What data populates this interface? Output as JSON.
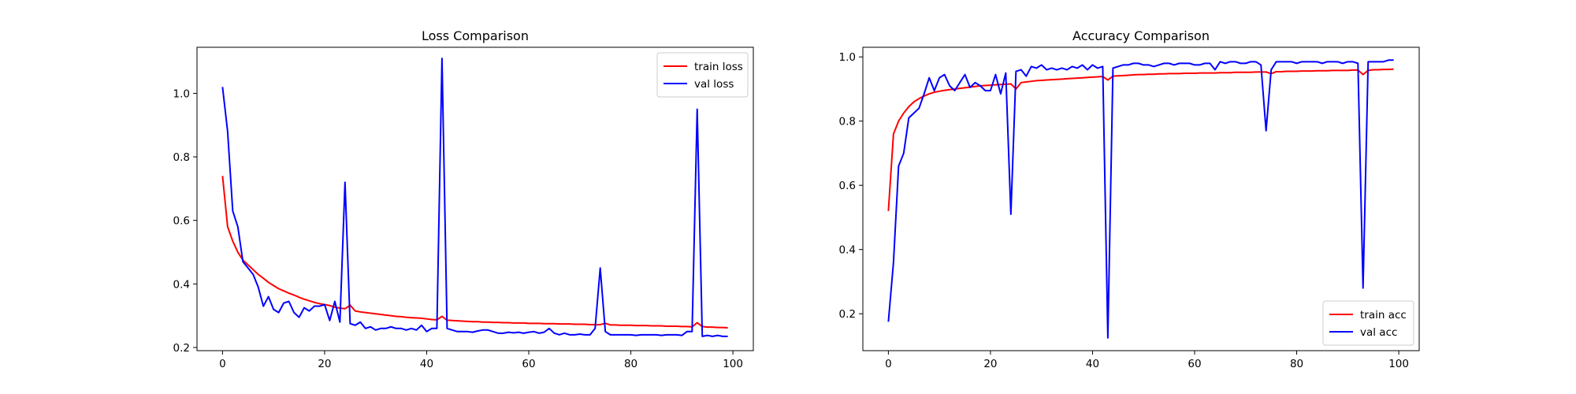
{
  "chart_data": [
    {
      "type": "line",
      "title": "Loss Comparison",
      "xlabel": "",
      "ylabel": "",
      "xlim": [
        -5,
        104
      ],
      "ylim": [
        0.19,
        1.145
      ],
      "xticks": [
        "0",
        "20",
        "40",
        "60",
        "80",
        "100"
      ],
      "yticks": [
        "0.2",
        "0.4",
        "0.6",
        "0.8",
        "1.0"
      ],
      "grid": false,
      "legend_position": "top-right",
      "x": [
        0,
        1,
        2,
        3,
        4,
        5,
        6,
        7,
        8,
        9,
        10,
        11,
        12,
        13,
        14,
        15,
        16,
        17,
        18,
        19,
        20,
        21,
        22,
        23,
        24,
        25,
        26,
        27,
        28,
        29,
        30,
        31,
        32,
        33,
        34,
        35,
        36,
        37,
        38,
        39,
        40,
        41,
        42,
        43,
        44,
        45,
        46,
        47,
        48,
        49,
        50,
        51,
        52,
        53,
        54,
        55,
        56,
        57,
        58,
        59,
        60,
        61,
        62,
        63,
        64,
        65,
        66,
        67,
        68,
        69,
        70,
        71,
        72,
        73,
        74,
        75,
        76,
        77,
        78,
        79,
        80,
        81,
        82,
        83,
        84,
        85,
        86,
        87,
        88,
        89,
        90,
        91,
        92,
        93,
        94,
        95,
        96,
        97,
        98,
        99
      ],
      "series": [
        {
          "name": "train loss",
          "color": "#ff0000",
          "values": [
            0.74,
            0.58,
            0.535,
            0.5,
            0.475,
            0.46,
            0.445,
            0.43,
            0.418,
            0.405,
            0.395,
            0.385,
            0.378,
            0.371,
            0.365,
            0.358,
            0.352,
            0.347,
            0.342,
            0.338,
            0.335,
            0.332,
            0.327,
            0.324,
            0.322,
            0.333,
            0.315,
            0.312,
            0.31,
            0.308,
            0.306,
            0.304,
            0.302,
            0.3,
            0.298,
            0.297,
            0.295,
            0.294,
            0.293,
            0.292,
            0.29,
            0.288,
            0.287,
            0.298,
            0.286,
            0.285,
            0.284,
            0.283,
            0.282,
            0.281,
            0.281,
            0.28,
            0.28,
            0.279,
            0.279,
            0.278,
            0.278,
            0.277,
            0.277,
            0.277,
            0.276,
            0.276,
            0.276,
            0.275,
            0.275,
            0.275,
            0.274,
            0.274,
            0.274,
            0.273,
            0.273,
            0.273,
            0.272,
            0.272,
            0.272,
            0.276,
            0.271,
            0.271,
            0.27,
            0.27,
            0.27,
            0.269,
            0.269,
            0.269,
            0.268,
            0.268,
            0.268,
            0.267,
            0.267,
            0.267,
            0.266,
            0.266,
            0.265,
            0.278,
            0.266,
            0.264,
            0.264,
            0.263,
            0.263,
            0.262
          ]
        },
        {
          "name": "val loss",
          "color": "#0000ff",
          "values": [
            1.02,
            0.88,
            0.63,
            0.58,
            0.47,
            0.45,
            0.43,
            0.39,
            0.33,
            0.36,
            0.32,
            0.31,
            0.34,
            0.345,
            0.31,
            0.295,
            0.325,
            0.315,
            0.33,
            0.33,
            0.335,
            0.285,
            0.345,
            0.28,
            0.72,
            0.275,
            0.27,
            0.28,
            0.26,
            0.265,
            0.255,
            0.26,
            0.26,
            0.265,
            0.26,
            0.26,
            0.255,
            0.26,
            0.255,
            0.27,
            0.25,
            0.26,
            0.26,
            1.11,
            0.26,
            0.255,
            0.25,
            0.25,
            0.25,
            0.248,
            0.252,
            0.255,
            0.255,
            0.25,
            0.245,
            0.245,
            0.248,
            0.246,
            0.248,
            0.245,
            0.248,
            0.25,
            0.245,
            0.248,
            0.26,
            0.245,
            0.24,
            0.245,
            0.24,
            0.24,
            0.242,
            0.24,
            0.24,
            0.26,
            0.45,
            0.25,
            0.24,
            0.24,
            0.24,
            0.24,
            0.24,
            0.238,
            0.24,
            0.24,
            0.24,
            0.24,
            0.238,
            0.24,
            0.24,
            0.24,
            0.238,
            0.25,
            0.25,
            0.95,
            0.235,
            0.238,
            0.235,
            0.238,
            0.235,
            0.235
          ]
        }
      ]
    },
    {
      "type": "line",
      "title": "Accuracy Comparison",
      "xlabel": "",
      "ylabel": "",
      "xlim": [
        -5,
        104
      ],
      "ylim": [
        0.085,
        1.03
      ],
      "xticks": [
        "0",
        "20",
        "40",
        "60",
        "80",
        "100"
      ],
      "yticks": [
        "0.2",
        "0.4",
        "0.6",
        "0.8",
        "1.0"
      ],
      "grid": false,
      "legend_position": "bottom-right",
      "x": [
        0,
        1,
        2,
        3,
        4,
        5,
        6,
        7,
        8,
        9,
        10,
        11,
        12,
        13,
        14,
        15,
        16,
        17,
        18,
        19,
        20,
        21,
        22,
        23,
        24,
        25,
        26,
        27,
        28,
        29,
        30,
        31,
        32,
        33,
        34,
        35,
        36,
        37,
        38,
        39,
        40,
        41,
        42,
        43,
        44,
        45,
        46,
        47,
        48,
        49,
        50,
        51,
        52,
        53,
        54,
        55,
        56,
        57,
        58,
        59,
        60,
        61,
        62,
        63,
        64,
        65,
        66,
        67,
        68,
        69,
        70,
        71,
        72,
        73,
        74,
        75,
        76,
        77,
        78,
        79,
        80,
        81,
        82,
        83,
        84,
        85,
        86,
        87,
        88,
        89,
        90,
        91,
        92,
        93,
        94,
        95,
        96,
        97,
        98,
        99
      ],
      "series": [
        {
          "name": "train acc",
          "color": "#ff0000",
          "values": [
            0.52,
            0.76,
            0.8,
            0.825,
            0.845,
            0.86,
            0.87,
            0.878,
            0.885,
            0.89,
            0.893,
            0.896,
            0.898,
            0.9,
            0.902,
            0.904,
            0.906,
            0.908,
            0.91,
            0.911,
            0.912,
            0.913,
            0.914,
            0.915,
            0.916,
            0.9,
            0.92,
            0.922,
            0.924,
            0.926,
            0.927,
            0.928,
            0.929,
            0.93,
            0.931,
            0.932,
            0.933,
            0.934,
            0.935,
            0.936,
            0.937,
            0.938,
            0.939,
            0.928,
            0.94,
            0.941,
            0.942,
            0.943,
            0.944,
            0.945,
            0.945,
            0.946,
            0.946,
            0.947,
            0.947,
            0.948,
            0.948,
            0.948,
            0.949,
            0.949,
            0.949,
            0.95,
            0.95,
            0.95,
            0.95,
            0.951,
            0.951,
            0.951,
            0.952,
            0.952,
            0.952,
            0.952,
            0.953,
            0.953,
            0.953,
            0.948,
            0.954,
            0.954,
            0.955,
            0.955,
            0.955,
            0.956,
            0.956,
            0.956,
            0.957,
            0.957,
            0.957,
            0.958,
            0.958,
            0.958,
            0.958,
            0.959,
            0.959,
            0.945,
            0.958,
            0.96,
            0.96,
            0.961,
            0.961,
            0.962
          ]
        },
        {
          "name": "val acc",
          "color": "#0000ff",
          "values": [
            0.175,
            0.36,
            0.66,
            0.7,
            0.81,
            0.825,
            0.84,
            0.885,
            0.935,
            0.895,
            0.935,
            0.945,
            0.91,
            0.895,
            0.92,
            0.945,
            0.905,
            0.92,
            0.91,
            0.895,
            0.895,
            0.945,
            0.885,
            0.95,
            0.51,
            0.955,
            0.96,
            0.94,
            0.97,
            0.965,
            0.975,
            0.96,
            0.965,
            0.96,
            0.965,
            0.96,
            0.97,
            0.965,
            0.975,
            0.96,
            0.975,
            0.965,
            0.97,
            0.125,
            0.965,
            0.97,
            0.975,
            0.975,
            0.98,
            0.98,
            0.975,
            0.975,
            0.97,
            0.975,
            0.98,
            0.98,
            0.975,
            0.98,
            0.98,
            0.98,
            0.975,
            0.975,
            0.98,
            0.98,
            0.96,
            0.985,
            0.98,
            0.985,
            0.985,
            0.98,
            0.98,
            0.985,
            0.985,
            0.975,
            0.77,
            0.96,
            0.985,
            0.985,
            0.985,
            0.985,
            0.98,
            0.985,
            0.985,
            0.985,
            0.985,
            0.98,
            0.985,
            0.985,
            0.985,
            0.98,
            0.985,
            0.985,
            0.98,
            0.28,
            0.985,
            0.985,
            0.985,
            0.985,
            0.99,
            0.99
          ]
        }
      ]
    }
  ]
}
